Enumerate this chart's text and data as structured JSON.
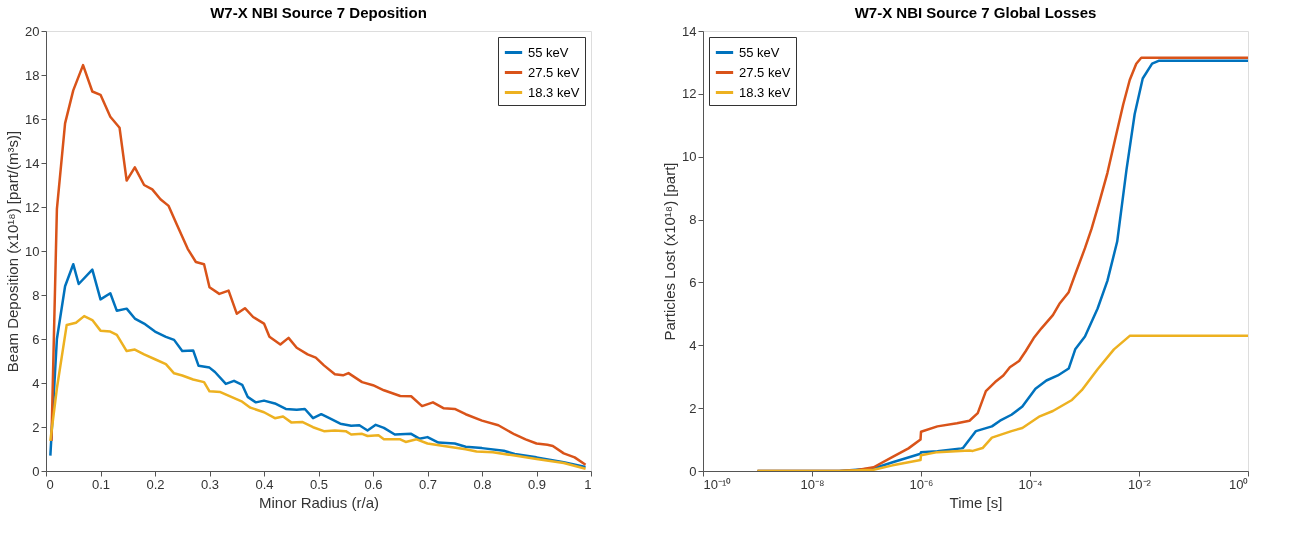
{
  "chart_data": [
    {
      "type": "line",
      "title": "W7-X NBI Source 7 Deposition",
      "xlabel": "Minor Radius (r/a)",
      "ylabel": "Beam Deposition (x10¹⁸) [part/(m³s)]",
      "xlim": [
        0,
        1
      ],
      "ylim": [
        0,
        20
      ],
      "xticks": [
        0,
        0.1,
        0.2,
        0.3,
        0.4,
        0.5,
        0.6,
        0.7,
        0.8,
        0.9,
        1
      ],
      "yticks": [
        0,
        2,
        4,
        6,
        8,
        10,
        12,
        14,
        16,
        18,
        20
      ],
      "grid": false,
      "legend": "top right",
      "series": [
        {
          "name": "55 keV",
          "color": "#0072bd",
          "x": [
            0.008,
            0.02,
            0.035,
            0.05,
            0.06,
            0.085,
            0.1,
            0.118,
            0.13,
            0.148,
            0.163,
            0.18,
            0.2,
            0.22,
            0.235,
            0.25,
            0.27,
            0.28,
            0.3,
            0.31,
            0.33,
            0.345,
            0.36,
            0.37,
            0.385,
            0.4,
            0.42,
            0.44,
            0.46,
            0.475,
            0.49,
            0.505,
            0.52,
            0.54,
            0.56,
            0.575,
            0.59,
            0.605,
            0.62,
            0.64,
            0.67,
            0.685,
            0.7,
            0.72,
            0.75,
            0.77,
            0.8,
            0.84,
            0.86,
            0.9,
            0.95,
            0.99
          ],
          "values": [
            0.7,
            6.0,
            8.4,
            9.4,
            8.5,
            9.15,
            7.8,
            8.08,
            7.28,
            7.38,
            6.93,
            6.7,
            6.34,
            6.1,
            5.96,
            5.45,
            5.48,
            4.78,
            4.7,
            4.5,
            3.96,
            4.1,
            3.92,
            3.37,
            3.12,
            3.2,
            3.07,
            2.82,
            2.78,
            2.82,
            2.4,
            2.58,
            2.4,
            2.15,
            2.06,
            2.08,
            1.84,
            2.1,
            1.96,
            1.66,
            1.69,
            1.47,
            1.54,
            1.29,
            1.25,
            1.1,
            1.04,
            0.92,
            0.77,
            0.62,
            0.4,
            0.18
          ]
        },
        {
          "name": "27.5 keV",
          "color": "#d95319",
          "x": [
            0.01,
            0.02,
            0.035,
            0.05,
            0.068,
            0.085,
            0.1,
            0.118,
            0.135,
            0.148,
            0.163,
            0.18,
            0.195,
            0.21,
            0.225,
            0.24,
            0.26,
            0.275,
            0.29,
            0.3,
            0.318,
            0.335,
            0.35,
            0.365,
            0.38,
            0.4,
            0.41,
            0.43,
            0.445,
            0.46,
            0.48,
            0.495,
            0.51,
            0.53,
            0.545,
            0.555,
            0.58,
            0.6,
            0.62,
            0.65,
            0.67,
            0.69,
            0.71,
            0.73,
            0.75,
            0.77,
            0.8,
            0.83,
            0.86,
            0.88,
            0.9,
            0.92,
            0.93,
            0.95,
            0.97,
            0.99
          ],
          "values": [
            1.37,
            11.9,
            15.8,
            17.3,
            18.45,
            17.25,
            17.1,
            16.1,
            15.6,
            13.2,
            13.8,
            13.0,
            12.8,
            12.35,
            12.05,
            11.2,
            10.1,
            9.5,
            9.4,
            8.35,
            8.05,
            8.2,
            7.15,
            7.4,
            7.0,
            6.7,
            6.1,
            5.75,
            6.05,
            5.6,
            5.3,
            5.15,
            4.8,
            4.4,
            4.35,
            4.45,
            4.04,
            3.9,
            3.67,
            3.41,
            3.4,
            2.95,
            3.12,
            2.85,
            2.82,
            2.58,
            2.29,
            2.08,
            1.66,
            1.44,
            1.25,
            1.19,
            1.14,
            0.8,
            0.62,
            0.28
          ]
        },
        {
          "name": "18.3 keV",
          "color": "#edb120",
          "x": [
            0.008,
            0.02,
            0.038,
            0.055,
            0.07,
            0.085,
            0.1,
            0.118,
            0.13,
            0.148,
            0.163,
            0.18,
            0.2,
            0.22,
            0.235,
            0.25,
            0.27,
            0.29,
            0.3,
            0.32,
            0.34,
            0.36,
            0.375,
            0.4,
            0.42,
            0.435,
            0.45,
            0.47,
            0.49,
            0.51,
            0.53,
            0.55,
            0.56,
            0.58,
            0.59,
            0.61,
            0.62,
            0.65,
            0.66,
            0.68,
            0.7,
            0.73,
            0.77,
            0.79,
            0.82,
            0.86,
            0.9,
            0.95,
            0.99
          ],
          "values": [
            1.37,
            3.76,
            6.64,
            6.74,
            7.04,
            6.86,
            6.38,
            6.34,
            6.19,
            5.45,
            5.52,
            5.3,
            5.08,
            4.86,
            4.44,
            4.34,
            4.16,
            4.04,
            3.62,
            3.59,
            3.37,
            3.15,
            2.88,
            2.67,
            2.4,
            2.48,
            2.21,
            2.23,
            1.99,
            1.81,
            1.84,
            1.81,
            1.66,
            1.69,
            1.59,
            1.62,
            1.44,
            1.44,
            1.32,
            1.44,
            1.25,
            1.14,
            0.99,
            0.89,
            0.85,
            0.7,
            0.55,
            0.36,
            0.1
          ]
        }
      ]
    },
    {
      "type": "line",
      "title": "W7-X NBI Source 7 Global Losses",
      "xlabel": "Time [s]",
      "ylabel": "Particles Lost (x10¹⁸) [part]",
      "log": "x",
      "xlim": [
        1e-10,
        1
      ],
      "ylim": [
        0,
        14
      ],
      "xticks": [
        {
          "value": 1e-10,
          "label": "10⁻¹⁰"
        },
        {
          "value": 1e-08,
          "label": "10⁻⁸"
        },
        {
          "value": 1e-06,
          "label": "10⁻⁶"
        },
        {
          "value": 0.0001,
          "label": "10⁻⁴"
        },
        {
          "value": 0.01,
          "label": "10⁻²"
        },
        {
          "value": 1,
          "label": "10⁰"
        }
      ],
      "yticks": [
        0,
        2,
        4,
        6,
        8,
        10,
        12,
        14
      ],
      "grid": false,
      "legend": "top left",
      "series": [
        {
          "name": "55 keV",
          "color": "#0072bd",
          "x": [
            1e-09,
            3.16e-08,
            1.35e-07,
            3.02e-07,
            9.8e-07,
            1e-06,
            2e-06,
            5.5e-06,
            5.89e-06,
            1.02e-05,
            2e-05,
            2.82e-05,
            4.57e-05,
            7.24e-05,
            0.000126,
            0.0002,
            0.000324,
            0.000513,
            0.000676,
            0.00102,
            0.00174,
            0.00263,
            0.00398,
            0.00589,
            0.00832,
            0.0117,
            0.0174,
            0.0229,
            1
          ],
          "values": [
            0,
            0,
            0.08,
            0.28,
            0.55,
            0.6,
            0.63,
            0.72,
            0.73,
            1.27,
            1.42,
            1.6,
            1.79,
            2.05,
            2.62,
            2.88,
            3.04,
            3.26,
            3.87,
            4.28,
            5.17,
            6.05,
            7.3,
            9.58,
            11.35,
            12.49,
            12.96,
            13.05,
            13.05
          ]
        },
        {
          "name": "27.5 keV",
          "color": "#d95319",
          "x": [
            1e-09,
            3.16e-08,
            6.03e-08,
            1.35e-07,
            3.02e-07,
            5.89e-07,
            9.8e-07,
            1e-06,
            2e-06,
            4.57e-06,
            7.76e-06,
            1.1e-05,
            1.55e-05,
            2.29e-05,
            3.24e-05,
            4.27e-05,
            6.31e-05,
            8.32e-05,
            0.000117,
            0.000162,
            0.000263,
            0.000347,
            0.000513,
            0.000676,
            0.00102,
            0.00135,
            0.00186,
            0.00263,
            0.00372,
            0.00513,
            0.00676,
            0.00891,
            0.011,
            1
          ],
          "values": [
            0,
            0,
            0.02,
            0.12,
            0.45,
            0.72,
            1.0,
            1.25,
            1.42,
            1.52,
            1.6,
            1.84,
            2.54,
            2.83,
            3.04,
            3.3,
            3.5,
            3.81,
            4.23,
            4.54,
            4.96,
            5.32,
            5.69,
            6.26,
            7.09,
            7.71,
            8.54,
            9.48,
            10.62,
            11.66,
            12.44,
            12.96,
            13.15,
            13.15
          ]
        },
        {
          "name": "18.3 keV",
          "color": "#edb120",
          "x": [
            1e-09,
            3.16e-08,
            1.35e-07,
            3.02e-07,
            9.8e-07,
            1e-06,
            2e-06,
            7.76e-06,
            8.91e-06,
            1.35e-05,
            2e-05,
            4.57e-05,
            7.24e-05,
            0.000151,
            0.000263,
            0.000589,
            0.000891,
            0.00174,
            0.00347,
            0.00676,
            1
          ],
          "values": [
            0,
            0,
            0.04,
            0.18,
            0.35,
            0.5,
            0.6,
            0.65,
            0.64,
            0.73,
            1.06,
            1.27,
            1.37,
            1.74,
            1.91,
            2.26,
            2.57,
            3.24,
            3.87,
            4.3,
            4.3
          ]
        }
      ]
    }
  ]
}
